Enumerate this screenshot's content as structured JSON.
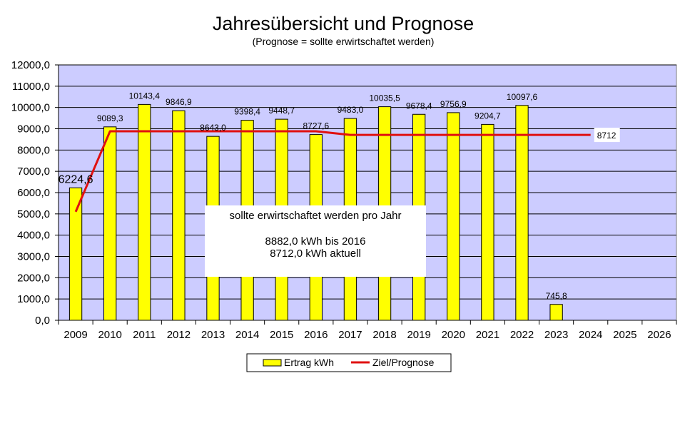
{
  "chart_data": {
    "type": "bar",
    "title": "Jahresübersicht und Prognose",
    "subtitle": "(Prognose = sollte erwirtschaftet werden)",
    "categories": [
      "2009",
      "2010",
      "2011",
      "2012",
      "2013",
      "2014",
      "2015",
      "2016",
      "2017",
      "2018",
      "2019",
      "2020",
      "2021",
      "2022",
      "2023",
      "2024",
      "2025",
      "2026"
    ],
    "ylim": [
      0,
      12000
    ],
    "yticks": [
      0,
      1000,
      2000,
      3000,
      4000,
      5000,
      6000,
      7000,
      8000,
      9000,
      10000,
      11000,
      12000
    ],
    "ytick_labels": [
      "0,0",
      "1000,0",
      "2000,0",
      "3000,0",
      "4000,0",
      "5000,0",
      "6000,0",
      "7000,0",
      "8000,0",
      "9000,0",
      "10000,0",
      "11000,0",
      "12000,0"
    ],
    "grid": "horizontal",
    "plot_background": "#ccccff",
    "legend_position": "bottom",
    "series": [
      {
        "name": "Ertrag kWh",
        "type": "bar",
        "color": "#ffff00",
        "values": [
          6224.6,
          9089.3,
          10143.4,
          9846.9,
          8643.0,
          9398.4,
          9448.7,
          8727.6,
          9483.0,
          10035.5,
          9678.4,
          9756.9,
          9204.7,
          10097.6,
          745.8,
          null,
          null,
          null
        ],
        "labels": [
          "6224,6",
          "9089,3",
          "10143,4",
          "9846,9",
          "8643,0",
          "9398,4",
          "9448,7",
          "8727,6",
          "9483,0",
          "10035,5",
          "9678,4",
          "9756,9",
          "9204,7",
          "10097,6",
          "745,8",
          "",
          "",
          ""
        ]
      },
      {
        "name": "Ziel/Prognose",
        "type": "line",
        "color": "#e01010",
        "values": [
          5100,
          8882,
          8882,
          8882,
          8882,
          8882,
          8882,
          8882,
          8712,
          8712,
          8712,
          8712,
          8712,
          8712,
          8712,
          8712,
          null,
          null
        ],
        "end_label": "8712"
      }
    ],
    "annotation": {
      "lines": [
        "sollte  erwirtschaftet  werden pro Jahr",
        "",
        "8882,0 kWh bis 2016",
        "8712,0 kWh aktuell"
      ]
    }
  }
}
